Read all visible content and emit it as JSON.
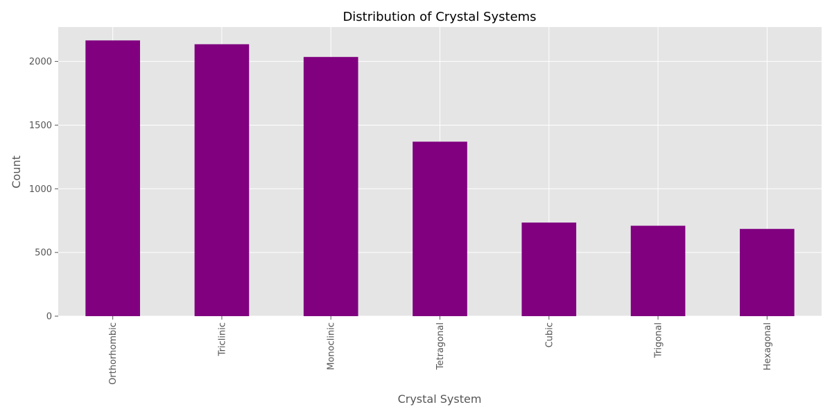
{
  "chart_data": {
    "type": "bar",
    "title": "Distribution of Crystal Systems",
    "xlabel": "Crystal System",
    "ylabel": "Count",
    "categories": [
      "Orthorhombic",
      "Triclinic",
      "Monoclinic",
      "Tetragonal",
      "Cubic",
      "Trigonal",
      "Hexagonal"
    ],
    "values": [
      2165,
      2135,
      2035,
      1370,
      735,
      710,
      685
    ],
    "ylim": [
      0,
      2270
    ],
    "yticks": [
      0,
      500,
      1000,
      1500,
      2000
    ],
    "grid": true,
    "bar_color": "#800080",
    "background_color": "#e5e5e5",
    "grid_color": "#ffffff"
  }
}
